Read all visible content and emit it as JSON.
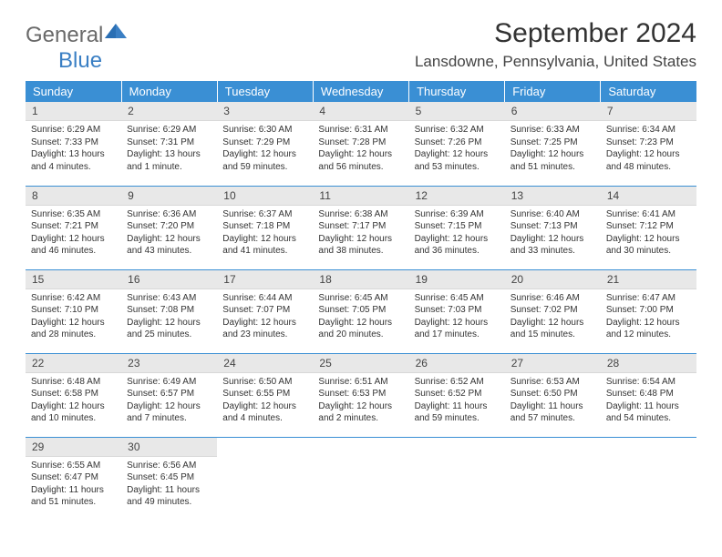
{
  "brand": {
    "part1": "General",
    "part2": "Blue"
  },
  "title": "September 2024",
  "location": "Lansdowne, Pennsylvania, United States",
  "colors": {
    "header_bg": "#3a8fd4",
    "header_text": "#ffffff",
    "daynum_bg": "#e8e8e8",
    "row_border": "#3a8fd4",
    "logo_general": "#6a6a6a",
    "logo_blue": "#3a7fc4"
  },
  "weekdays": [
    "Sunday",
    "Monday",
    "Tuesday",
    "Wednesday",
    "Thursday",
    "Friday",
    "Saturday"
  ],
  "weeks": [
    [
      {
        "n": "1",
        "sr": "Sunrise: 6:29 AM",
        "ss": "Sunset: 7:33 PM",
        "d1": "Daylight: 13 hours",
        "d2": "and 4 minutes."
      },
      {
        "n": "2",
        "sr": "Sunrise: 6:29 AM",
        "ss": "Sunset: 7:31 PM",
        "d1": "Daylight: 13 hours",
        "d2": "and 1 minute."
      },
      {
        "n": "3",
        "sr": "Sunrise: 6:30 AM",
        "ss": "Sunset: 7:29 PM",
        "d1": "Daylight: 12 hours",
        "d2": "and 59 minutes."
      },
      {
        "n": "4",
        "sr": "Sunrise: 6:31 AM",
        "ss": "Sunset: 7:28 PM",
        "d1": "Daylight: 12 hours",
        "d2": "and 56 minutes."
      },
      {
        "n": "5",
        "sr": "Sunrise: 6:32 AM",
        "ss": "Sunset: 7:26 PM",
        "d1": "Daylight: 12 hours",
        "d2": "and 53 minutes."
      },
      {
        "n": "6",
        "sr": "Sunrise: 6:33 AM",
        "ss": "Sunset: 7:25 PM",
        "d1": "Daylight: 12 hours",
        "d2": "and 51 minutes."
      },
      {
        "n": "7",
        "sr": "Sunrise: 6:34 AM",
        "ss": "Sunset: 7:23 PM",
        "d1": "Daylight: 12 hours",
        "d2": "and 48 minutes."
      }
    ],
    [
      {
        "n": "8",
        "sr": "Sunrise: 6:35 AM",
        "ss": "Sunset: 7:21 PM",
        "d1": "Daylight: 12 hours",
        "d2": "and 46 minutes."
      },
      {
        "n": "9",
        "sr": "Sunrise: 6:36 AM",
        "ss": "Sunset: 7:20 PM",
        "d1": "Daylight: 12 hours",
        "d2": "and 43 minutes."
      },
      {
        "n": "10",
        "sr": "Sunrise: 6:37 AM",
        "ss": "Sunset: 7:18 PM",
        "d1": "Daylight: 12 hours",
        "d2": "and 41 minutes."
      },
      {
        "n": "11",
        "sr": "Sunrise: 6:38 AM",
        "ss": "Sunset: 7:17 PM",
        "d1": "Daylight: 12 hours",
        "d2": "and 38 minutes."
      },
      {
        "n": "12",
        "sr": "Sunrise: 6:39 AM",
        "ss": "Sunset: 7:15 PM",
        "d1": "Daylight: 12 hours",
        "d2": "and 36 minutes."
      },
      {
        "n": "13",
        "sr": "Sunrise: 6:40 AM",
        "ss": "Sunset: 7:13 PM",
        "d1": "Daylight: 12 hours",
        "d2": "and 33 minutes."
      },
      {
        "n": "14",
        "sr": "Sunrise: 6:41 AM",
        "ss": "Sunset: 7:12 PM",
        "d1": "Daylight: 12 hours",
        "d2": "and 30 minutes."
      }
    ],
    [
      {
        "n": "15",
        "sr": "Sunrise: 6:42 AM",
        "ss": "Sunset: 7:10 PM",
        "d1": "Daylight: 12 hours",
        "d2": "and 28 minutes."
      },
      {
        "n": "16",
        "sr": "Sunrise: 6:43 AM",
        "ss": "Sunset: 7:08 PM",
        "d1": "Daylight: 12 hours",
        "d2": "and 25 minutes."
      },
      {
        "n": "17",
        "sr": "Sunrise: 6:44 AM",
        "ss": "Sunset: 7:07 PM",
        "d1": "Daylight: 12 hours",
        "d2": "and 23 minutes."
      },
      {
        "n": "18",
        "sr": "Sunrise: 6:45 AM",
        "ss": "Sunset: 7:05 PM",
        "d1": "Daylight: 12 hours",
        "d2": "and 20 minutes."
      },
      {
        "n": "19",
        "sr": "Sunrise: 6:45 AM",
        "ss": "Sunset: 7:03 PM",
        "d1": "Daylight: 12 hours",
        "d2": "and 17 minutes."
      },
      {
        "n": "20",
        "sr": "Sunrise: 6:46 AM",
        "ss": "Sunset: 7:02 PM",
        "d1": "Daylight: 12 hours",
        "d2": "and 15 minutes."
      },
      {
        "n": "21",
        "sr": "Sunrise: 6:47 AM",
        "ss": "Sunset: 7:00 PM",
        "d1": "Daylight: 12 hours",
        "d2": "and 12 minutes."
      }
    ],
    [
      {
        "n": "22",
        "sr": "Sunrise: 6:48 AM",
        "ss": "Sunset: 6:58 PM",
        "d1": "Daylight: 12 hours",
        "d2": "and 10 minutes."
      },
      {
        "n": "23",
        "sr": "Sunrise: 6:49 AM",
        "ss": "Sunset: 6:57 PM",
        "d1": "Daylight: 12 hours",
        "d2": "and 7 minutes."
      },
      {
        "n": "24",
        "sr": "Sunrise: 6:50 AM",
        "ss": "Sunset: 6:55 PM",
        "d1": "Daylight: 12 hours",
        "d2": "and 4 minutes."
      },
      {
        "n": "25",
        "sr": "Sunrise: 6:51 AM",
        "ss": "Sunset: 6:53 PM",
        "d1": "Daylight: 12 hours",
        "d2": "and 2 minutes."
      },
      {
        "n": "26",
        "sr": "Sunrise: 6:52 AM",
        "ss": "Sunset: 6:52 PM",
        "d1": "Daylight: 11 hours",
        "d2": "and 59 minutes."
      },
      {
        "n": "27",
        "sr": "Sunrise: 6:53 AM",
        "ss": "Sunset: 6:50 PM",
        "d1": "Daylight: 11 hours",
        "d2": "and 57 minutes."
      },
      {
        "n": "28",
        "sr": "Sunrise: 6:54 AM",
        "ss": "Sunset: 6:48 PM",
        "d1": "Daylight: 11 hours",
        "d2": "and 54 minutes."
      }
    ],
    [
      {
        "n": "29",
        "sr": "Sunrise: 6:55 AM",
        "ss": "Sunset: 6:47 PM",
        "d1": "Daylight: 11 hours",
        "d2": "and 51 minutes."
      },
      {
        "n": "30",
        "sr": "Sunrise: 6:56 AM",
        "ss": "Sunset: 6:45 PM",
        "d1": "Daylight: 11 hours",
        "d2": "and 49 minutes."
      },
      null,
      null,
      null,
      null,
      null
    ]
  ]
}
